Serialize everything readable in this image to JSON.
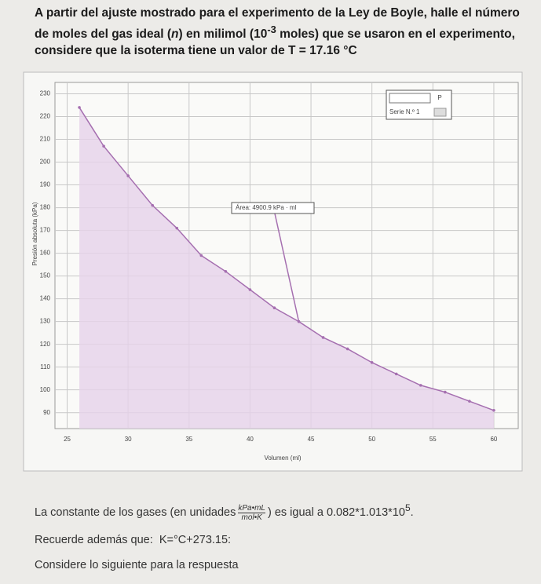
{
  "question": {
    "p1a": "A partir del ajuste mostrado para el experimento de la Ley de Boyle, halle el número de moles del gas ideal (",
    "p1n": "n",
    "p1b": ") en milimol (10",
    "p1sup": "-3",
    "p1c": " moles) que se usaron en el experimento, considere que la isoterma tiene un valor de T = 17.16 °C"
  },
  "chart_data": {
    "type": "line",
    "x_label": "Volumen (ml)",
    "y_label": "Presión absoluta (kPa)",
    "x": [
      26,
      28,
      30,
      32,
      34,
      36,
      38,
      40,
      42,
      44,
      46,
      48,
      50,
      52,
      54,
      56,
      58,
      60
    ],
    "series": [
      {
        "name": "Serie N.º 1",
        "color": "#a56fb0",
        "values": [
          224,
          207,
          194,
          181,
          171,
          159,
          152,
          144,
          136,
          130,
          123,
          118,
          112,
          107,
          102,
          99,
          95,
          91
        ]
      }
    ],
    "legend_title": "P",
    "annotation": "Área: 4900.9 kPa · ml",
    "xlim": [
      24,
      62
    ],
    "xticks": [
      25,
      30,
      35,
      40,
      45,
      50,
      55,
      60
    ],
    "ylim": [
      83,
      235
    ],
    "yticks": [
      90,
      100,
      110,
      120,
      130,
      140,
      150,
      160,
      170,
      180,
      190,
      200,
      210,
      220,
      230
    ],
    "grid": true
  },
  "notes": {
    "c1": "La constante de los gases (en unidades",
    "num": "kPa•mL",
    "den": "mol•K",
    "c2": ") es igual a 0.082*1.013*10",
    "c2sup": "5",
    "c3": ".",
    "r1": "Recuerde además que:",
    "r2": "K=°C+273.15:",
    "s1": "Considere lo siguiente para la respuesta"
  }
}
